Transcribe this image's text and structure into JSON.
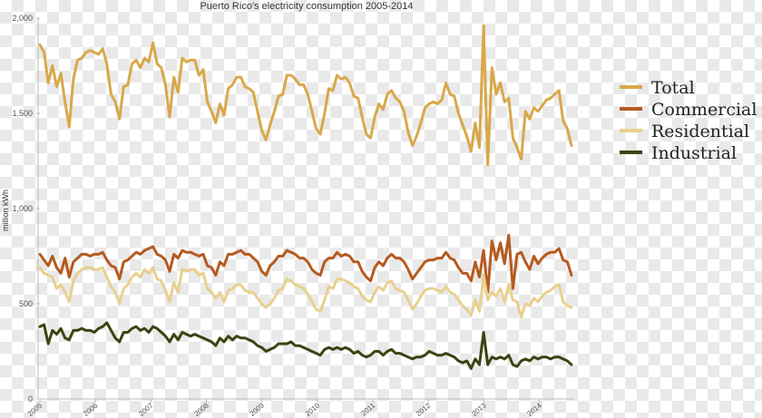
{
  "chart_data": {
    "type": "line",
    "title": "Puerto Rico's electricity consumption 2005-2014",
    "ylabel": "million kWh",
    "xlabel": "",
    "ylim": [
      0,
      2000
    ],
    "yticks": [
      0,
      500,
      1000,
      1500,
      2000
    ],
    "ytick_labels": [
      "0",
      "500",
      "1,000",
      "1,500",
      "2,000"
    ],
    "xticks": [
      "2005",
      "2006",
      "2007",
      "2008",
      "2009",
      "2010",
      "2011",
      "2012",
      "2013",
      "2014"
    ],
    "xlim": [
      2005.0,
      2014.58
    ],
    "grid": false,
    "legend_position": "right",
    "series": [
      {
        "name": "Total",
        "color": "#d9a84a",
        "values": [
          1860,
          1820,
          1660,
          1750,
          1640,
          1710,
          1560,
          1430,
          1680,
          1780,
          1790,
          1820,
          1830,
          1820,
          1810,
          1840,
          1760,
          1600,
          1560,
          1470,
          1640,
          1650,
          1760,
          1780,
          1740,
          1790,
          1770,
          1870,
          1760,
          1740,
          1650,
          1480,
          1690,
          1610,
          1790,
          1770,
          1780,
          1780,
          1700,
          1730,
          1560,
          1510,
          1450,
          1550,
          1490,
          1630,
          1650,
          1690,
          1690,
          1640,
          1630,
          1610,
          1510,
          1410,
          1360,
          1440,
          1510,
          1590,
          1600,
          1700,
          1700,
          1680,
          1650,
          1650,
          1600,
          1510,
          1420,
          1390,
          1500,
          1630,
          1620,
          1700,
          1680,
          1690,
          1660,
          1590,
          1580,
          1480,
          1390,
          1370,
          1480,
          1550,
          1520,
          1600,
          1620,
          1580,
          1560,
          1510,
          1400,
          1330,
          1380,
          1450,
          1530,
          1550,
          1560,
          1550,
          1570,
          1660,
          1600,
          1590,
          1500,
          1440,
          1380,
          1300,
          1450,
          1320,
          1960,
          1230,
          1740,
          1600,
          1660,
          1560,
          1580,
          1370,
          1320,
          1260,
          1510,
          1470,
          1530,
          1510,
          1540,
          1570,
          1580,
          1600,
          1620,
          1460,
          1420,
          1330
        ],
        "label_lines": 1
      },
      {
        "name": "Commercial",
        "color": "#b65a1f",
        "values": [
          760,
          730,
          700,
          750,
          690,
          660,
          740,
          640,
          720,
          740,
          760,
          760,
          750,
          760,
          760,
          770,
          730,
          700,
          690,
          630,
          720,
          730,
          750,
          770,
          760,
          780,
          790,
          800,
          760,
          750,
          730,
          670,
          760,
          740,
          780,
          770,
          770,
          760,
          750,
          760,
          700,
          690,
          650,
          720,
          700,
          760,
          760,
          770,
          780,
          760,
          760,
          740,
          720,
          670,
          650,
          700,
          720,
          750,
          750,
          780,
          770,
          760,
          740,
          740,
          720,
          680,
          660,
          650,
          720,
          740,
          740,
          770,
          750,
          760,
          750,
          720,
          720,
          670,
          640,
          620,
          690,
          720,
          700,
          740,
          760,
          740,
          740,
          720,
          680,
          630,
          660,
          690,
          720,
          730,
          730,
          740,
          740,
          770,
          740,
          730,
          690,
          660,
          660,
          620,
          720,
          640,
          780,
          560,
          830,
          730,
          820,
          710,
          860,
          580,
          760,
          770,
          720,
          680,
          750,
          710,
          740,
          760,
          770,
          770,
          790,
          730,
          720,
          650
        ]
      },
      {
        "name": "Residential",
        "color": "#e8d08e",
        "values": [
          690,
          660,
          650,
          640,
          580,
          600,
          560,
          510,
          620,
          660,
          680,
          690,
          690,
          680,
          680,
          690,
          640,
          590,
          560,
          500,
          580,
          600,
          640,
          660,
          640,
          680,
          660,
          690,
          630,
          620,
          570,
          510,
          610,
          560,
          680,
          670,
          680,
          680,
          650,
          660,
          580,
          560,
          530,
          560,
          510,
          570,
          580,
          600,
          600,
          570,
          560,
          560,
          530,
          500,
          480,
          500,
          530,
          570,
          580,
          630,
          620,
          600,
          590,
          580,
          550,
          510,
          470,
          460,
          520,
          590,
          580,
          630,
          630,
          620,
          610,
          590,
          580,
          540,
          520,
          510,
          560,
          590,
          570,
          610,
          620,
          580,
          570,
          560,
          520,
          470,
          500,
          540,
          570,
          580,
          580,
          570,
          560,
          590,
          560,
          550,
          520,
          490,
          470,
          440,
          520,
          460,
          650,
          520,
          560,
          540,
          580,
          510,
          600,
          520,
          510,
          430,
          500,
          490,
          530,
          510,
          540,
          560,
          570,
          590,
          600,
          510,
          490,
          480
        ]
      },
      {
        "name": "Industrial",
        "color": "#3b4412",
        "values": [
          380,
          390,
          290,
          360,
          340,
          370,
          320,
          310,
          360,
          360,
          370,
          360,
          360,
          350,
          370,
          380,
          400,
          360,
          320,
          300,
          350,
          350,
          370,
          380,
          360,
          370,
          350,
          380,
          370,
          350,
          330,
          300,
          340,
          310,
          350,
          340,
          330,
          340,
          330,
          320,
          310,
          300,
          280,
          320,
          300,
          330,
          310,
          330,
          320,
          320,
          310,
          300,
          280,
          270,
          250,
          260,
          270,
          290,
          290,
          290,
          300,
          280,
          280,
          270,
          260,
          250,
          240,
          230,
          260,
          270,
          260,
          270,
          260,
          270,
          260,
          240,
          250,
          230,
          220,
          230,
          250,
          250,
          230,
          250,
          260,
          240,
          240,
          230,
          220,
          210,
          220,
          220,
          230,
          250,
          240,
          230,
          230,
          240,
          230,
          220,
          200,
          190,
          200,
          160,
          210,
          180,
          350,
          180,
          220,
          210,
          220,
          210,
          230,
          180,
          170,
          200,
          210,
          200,
          220,
          210,
          220,
          220,
          210,
          220,
          220,
          210,
          200,
          180
        ]
      }
    ]
  }
}
